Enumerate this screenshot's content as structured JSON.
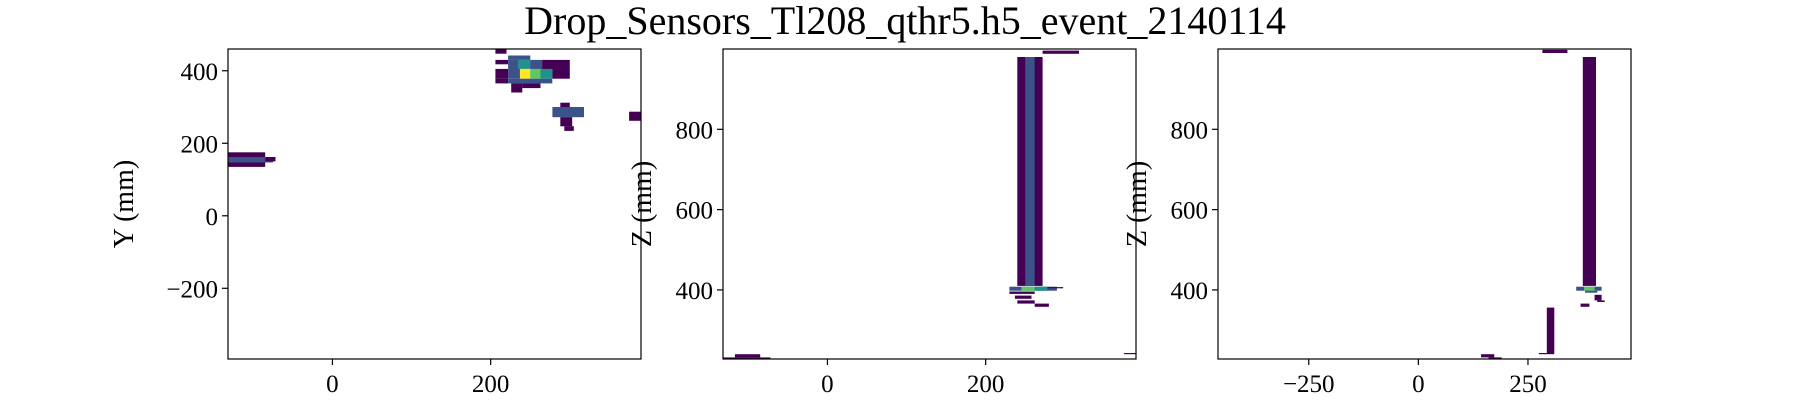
{
  "figure_title": "Drop_Sensors_Tl208_qthr5.h5_event_2140114",
  "colormap": [
    "#440154",
    "#3b528b",
    "#21918c",
    "#5ec962",
    "#fde725"
  ],
  "chart_data": [
    {
      "type": "heatmap",
      "ylabel": "Y (mm)",
      "xlim": [
        -132,
        390
      ],
      "ylim": [
        -395,
        460
      ],
      "xticks": [
        0,
        200
      ],
      "yticks": [
        -200,
        0,
        200,
        400
      ],
      "xtick_labels": [
        "0",
        "200"
      ],
      "ytick_labels": [
        "−200",
        "0",
        "200",
        "400"
      ],
      "cells": [
        {
          "x0": 206,
          "x1": 220,
          "y0": 447,
          "y1": 460,
          "v": 0.1
        },
        {
          "x0": 222,
          "x1": 250,
          "y0": 430,
          "y1": 442,
          "v": 0.2
        },
        {
          "x0": 206,
          "x1": 222,
          "y0": 418,
          "y1": 430,
          "v": 0.1
        },
        {
          "x0": 222,
          "x1": 235,
          "y0": 405,
          "y1": 430,
          "v": 0.3
        },
        {
          "x0": 235,
          "x1": 250,
          "y0": 405,
          "y1": 430,
          "v": 0.45
        },
        {
          "x0": 250,
          "x1": 265,
          "y0": 405,
          "y1": 430,
          "v": 0.3
        },
        {
          "x0": 265,
          "x1": 300,
          "y0": 405,
          "y1": 430,
          "v": 0.1
        },
        {
          "x0": 206,
          "x1": 222,
          "y0": 378,
          "y1": 405,
          "v": 0.1
        },
        {
          "x0": 222,
          "x1": 237,
          "y0": 378,
          "y1": 405,
          "v": 0.35
        },
        {
          "x0": 237,
          "x1": 250,
          "y0": 378,
          "y1": 405,
          "v": 0.92
        },
        {
          "x0": 250,
          "x1": 263,
          "y0": 378,
          "y1": 405,
          "v": 0.75
        },
        {
          "x0": 263,
          "x1": 278,
          "y0": 378,
          "y1": 405,
          "v": 0.4
        },
        {
          "x0": 278,
          "x1": 300,
          "y0": 378,
          "y1": 405,
          "v": 0.1
        },
        {
          "x0": 206,
          "x1": 222,
          "y0": 365,
          "y1": 378,
          "v": 0.1
        },
        {
          "x0": 222,
          "x1": 237,
          "y0": 365,
          "y1": 378,
          "v": 0.15
        },
        {
          "x0": 237,
          "x1": 278,
          "y0": 365,
          "y1": 378,
          "v": 0.25
        },
        {
          "x0": 226,
          "x1": 240,
          "y0": 340,
          "y1": 365,
          "v": 0.1
        },
        {
          "x0": 240,
          "x1": 263,
          "y0": 352,
          "y1": 365,
          "v": 0.1
        },
        {
          "x0": 288,
          "x1": 300,
          "y0": 300,
          "y1": 312,
          "v": 0.1
        },
        {
          "x0": 278,
          "x1": 318,
          "y0": 272,
          "y1": 300,
          "v": 0.15
        },
        {
          "x0": 288,
          "x1": 303,
          "y0": 247,
          "y1": 272,
          "v": 0.1
        },
        {
          "x0": 293,
          "x1": 305,
          "y0": 234,
          "y1": 247,
          "v": 0.1
        },
        {
          "x0": 375,
          "x1": 390,
          "y0": 262,
          "y1": 287,
          "v": 0.1
        },
        {
          "x0": -132,
          "x1": -85,
          "y0": 160,
          "y1": 175,
          "v": 0.1
        },
        {
          "x0": -132,
          "x1": -75,
          "y0": 147,
          "y1": 160,
          "v": 0.15
        },
        {
          "x0": -85,
          "x1": -72,
          "y0": 150,
          "y1": 162,
          "v": 0.1
        },
        {
          "x0": -132,
          "x1": -85,
          "y0": 135,
          "y1": 147,
          "v": 0.1
        }
      ]
    },
    {
      "type": "heatmap",
      "ylabel": "Z (mm)",
      "xlim": [
        -132,
        390
      ],
      "ylim": [
        228,
        1000
      ],
      "xticks": [
        0,
        200
      ],
      "yticks": [
        400,
        600,
        800
      ],
      "xtick_labels": [
        "0",
        "200"
      ],
      "ytick_labels": [
        "400",
        "600",
        "800"
      ],
      "cells": [
        {
          "x0": 240,
          "x1": 272,
          "y0": 410,
          "y1": 980,
          "v": 0.1
        },
        {
          "x0": 250,
          "x1": 262,
          "y0": 410,
          "y1": 980,
          "v": 0.2
        },
        {
          "x0": 272,
          "x1": 318,
          "y0": 988,
          "y1": 996,
          "v": 0.1
        },
        {
          "x0": 230,
          "x1": 290,
          "y0": 398,
          "y1": 408,
          "v": 0.25
        },
        {
          "x0": 245,
          "x1": 262,
          "y0": 398,
          "y1": 408,
          "v": 0.85
        },
        {
          "x0": 262,
          "x1": 278,
          "y0": 398,
          "y1": 408,
          "v": 0.5
        },
        {
          "x0": 278,
          "x1": 298,
          "y0": 404,
          "y1": 407,
          "v": 0.1
        },
        {
          "x0": 230,
          "x1": 262,
          "y0": 390,
          "y1": 396,
          "v": 0.1
        },
        {
          "x0": 237,
          "x1": 258,
          "y0": 378,
          "y1": 386,
          "v": 0.1
        },
        {
          "x0": 240,
          "x1": 262,
          "y0": 366,
          "y1": 374,
          "v": 0.1
        },
        {
          "x0": 262,
          "x1": 280,
          "y0": 358,
          "y1": 366,
          "v": 0.1
        },
        {
          "x0": -132,
          "x1": -72,
          "y0": 228,
          "y1": 232,
          "v": 0.1
        },
        {
          "x0": -117,
          "x1": -85,
          "y0": 232,
          "y1": 240,
          "v": 0.1
        },
        {
          "x0": 375,
          "x1": 390,
          "y0": 240,
          "y1": 243,
          "v": 0.1
        }
      ]
    },
    {
      "type": "heatmap",
      "ylabel": "Z (mm)",
      "xlim": [
        -457,
        485
      ],
      "ylim": [
        228,
        1000
      ],
      "xticks": [
        -250,
        0,
        250
      ],
      "yticks": [
        400,
        600,
        800
      ],
      "xtick_labels": [
        "−250",
        "0",
        "250"
      ],
      "ytick_labels": [
        "400",
        "600",
        "800"
      ],
      "cells": [
        {
          "x0": 375,
          "x1": 405,
          "y0": 410,
          "y1": 980,
          "v": 0.1
        },
        {
          "x0": 283,
          "x1": 340,
          "y0": 990,
          "y1": 998,
          "v": 0.1
        },
        {
          "x0": 360,
          "x1": 418,
          "y0": 398,
          "y1": 408,
          "v": 0.25
        },
        {
          "x0": 378,
          "x1": 402,
          "y0": 398,
          "y1": 408,
          "v": 0.75
        },
        {
          "x0": 380,
          "x1": 408,
          "y0": 393,
          "y1": 398,
          "v": 0.3
        },
        {
          "x0": 402,
          "x1": 418,
          "y0": 374,
          "y1": 388,
          "v": 0.1
        },
        {
          "x0": 408,
          "x1": 425,
          "y0": 370,
          "y1": 374,
          "v": 0.1
        },
        {
          "x0": 370,
          "x1": 390,
          "y0": 358,
          "y1": 366,
          "v": 0.1
        },
        {
          "x0": 293,
          "x1": 310,
          "y0": 243,
          "y1": 356,
          "v": 0.1
        },
        {
          "x0": 275,
          "x1": 310,
          "y0": 240,
          "y1": 243,
          "v": 0.1
        },
        {
          "x0": 143,
          "x1": 173,
          "y0": 232,
          "y1": 240,
          "v": 0.1
        },
        {
          "x0": 160,
          "x1": 190,
          "y0": 228,
          "y1": 232,
          "v": 0.1
        }
      ]
    }
  ]
}
